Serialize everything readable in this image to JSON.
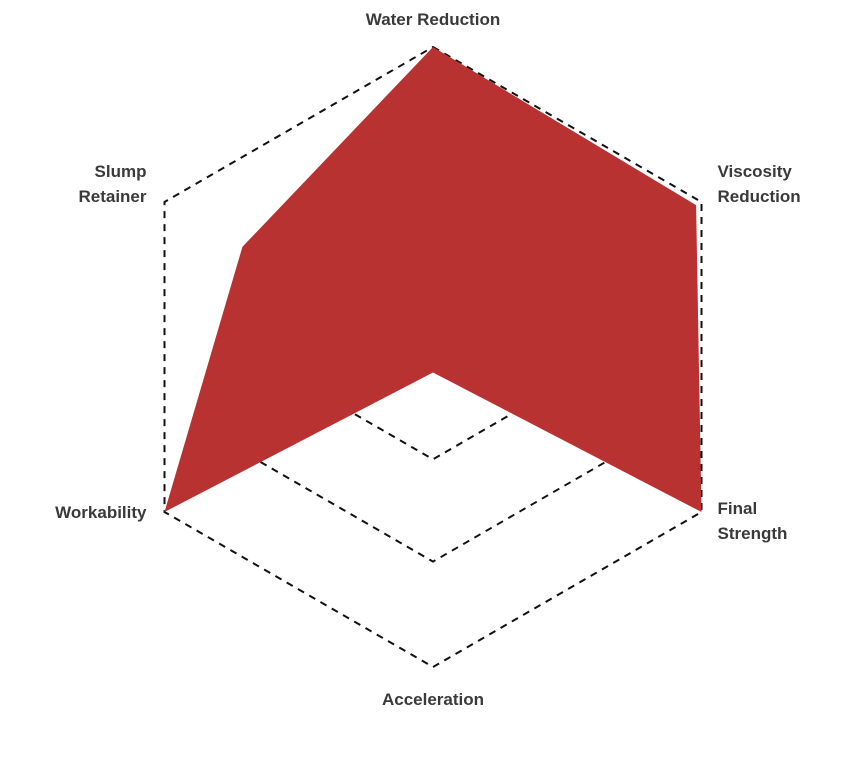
{
  "chart_data": {
    "type": "radar",
    "axes": [
      {
        "label_lines": [
          "Water Reduction"
        ],
        "value": 1.0
      },
      {
        "label_lines": [
          "Viscosity",
          "Reduction"
        ],
        "value": 0.98
      },
      {
        "label_lines": [
          "Final",
          "Strength"
        ],
        "value": 1.0
      },
      {
        "label_lines": [
          "Acceleration"
        ],
        "value": 0.05
      },
      {
        "label_lines": [
          "Workability"
        ],
        "value": 1.0
      },
      {
        "label_lines": [
          "Slump",
          "Retainer"
        ],
        "value": 0.71
      }
    ],
    "rings": [
      0.33,
      0.66,
      1.0
    ],
    "range": [
      0,
      1
    ],
    "grid": true,
    "legend": "none",
    "fill_color": "#b83232",
    "grid_color": "#111111"
  }
}
